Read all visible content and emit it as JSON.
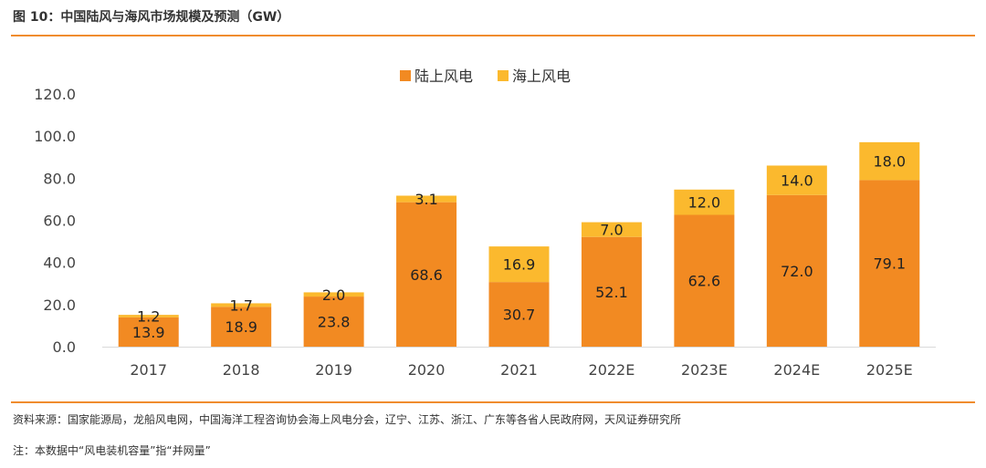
{
  "figure": {
    "title": "图 10：中国陆风与海风市场规模及预测（GW）",
    "source": "资料来源：国家能源局，龙船风电网，中国海洋工程咨询协会海上风电分会，辽宁、江苏、浙江、广东等各省人民政府网，天风证券研究所",
    "note": "注：本数据中“风电装机容量”指“并网量”"
  },
  "chart_data": {
    "type": "bar",
    "stacked": true,
    "title": "中国陆风与海风市场规模及预测（GW）",
    "categories": [
      "2017",
      "2018",
      "2019",
      "2020",
      "2021",
      "2022E",
      "2023E",
      "2024E",
      "2025E"
    ],
    "series": [
      {
        "name": "陆上风电",
        "color": "#f28a22",
        "values": [
          13.9,
          18.9,
          23.8,
          68.6,
          30.7,
          52.1,
          62.6,
          72.0,
          79.1
        ]
      },
      {
        "name": "海上风电",
        "color": "#fbb92e",
        "values": [
          1.2,
          1.7,
          2.0,
          3.1,
          16.9,
          7.0,
          12.0,
          14.0,
          18.0
        ]
      }
    ],
    "ylim": [
      0,
      120
    ],
    "yticks": [
      0,
      20,
      40,
      60,
      80,
      100,
      120
    ],
    "ytick_decimals": 1,
    "label_decimals": 1,
    "legend_position": "top-center",
    "grid": false,
    "xlabel": "",
    "ylabel": ""
  }
}
